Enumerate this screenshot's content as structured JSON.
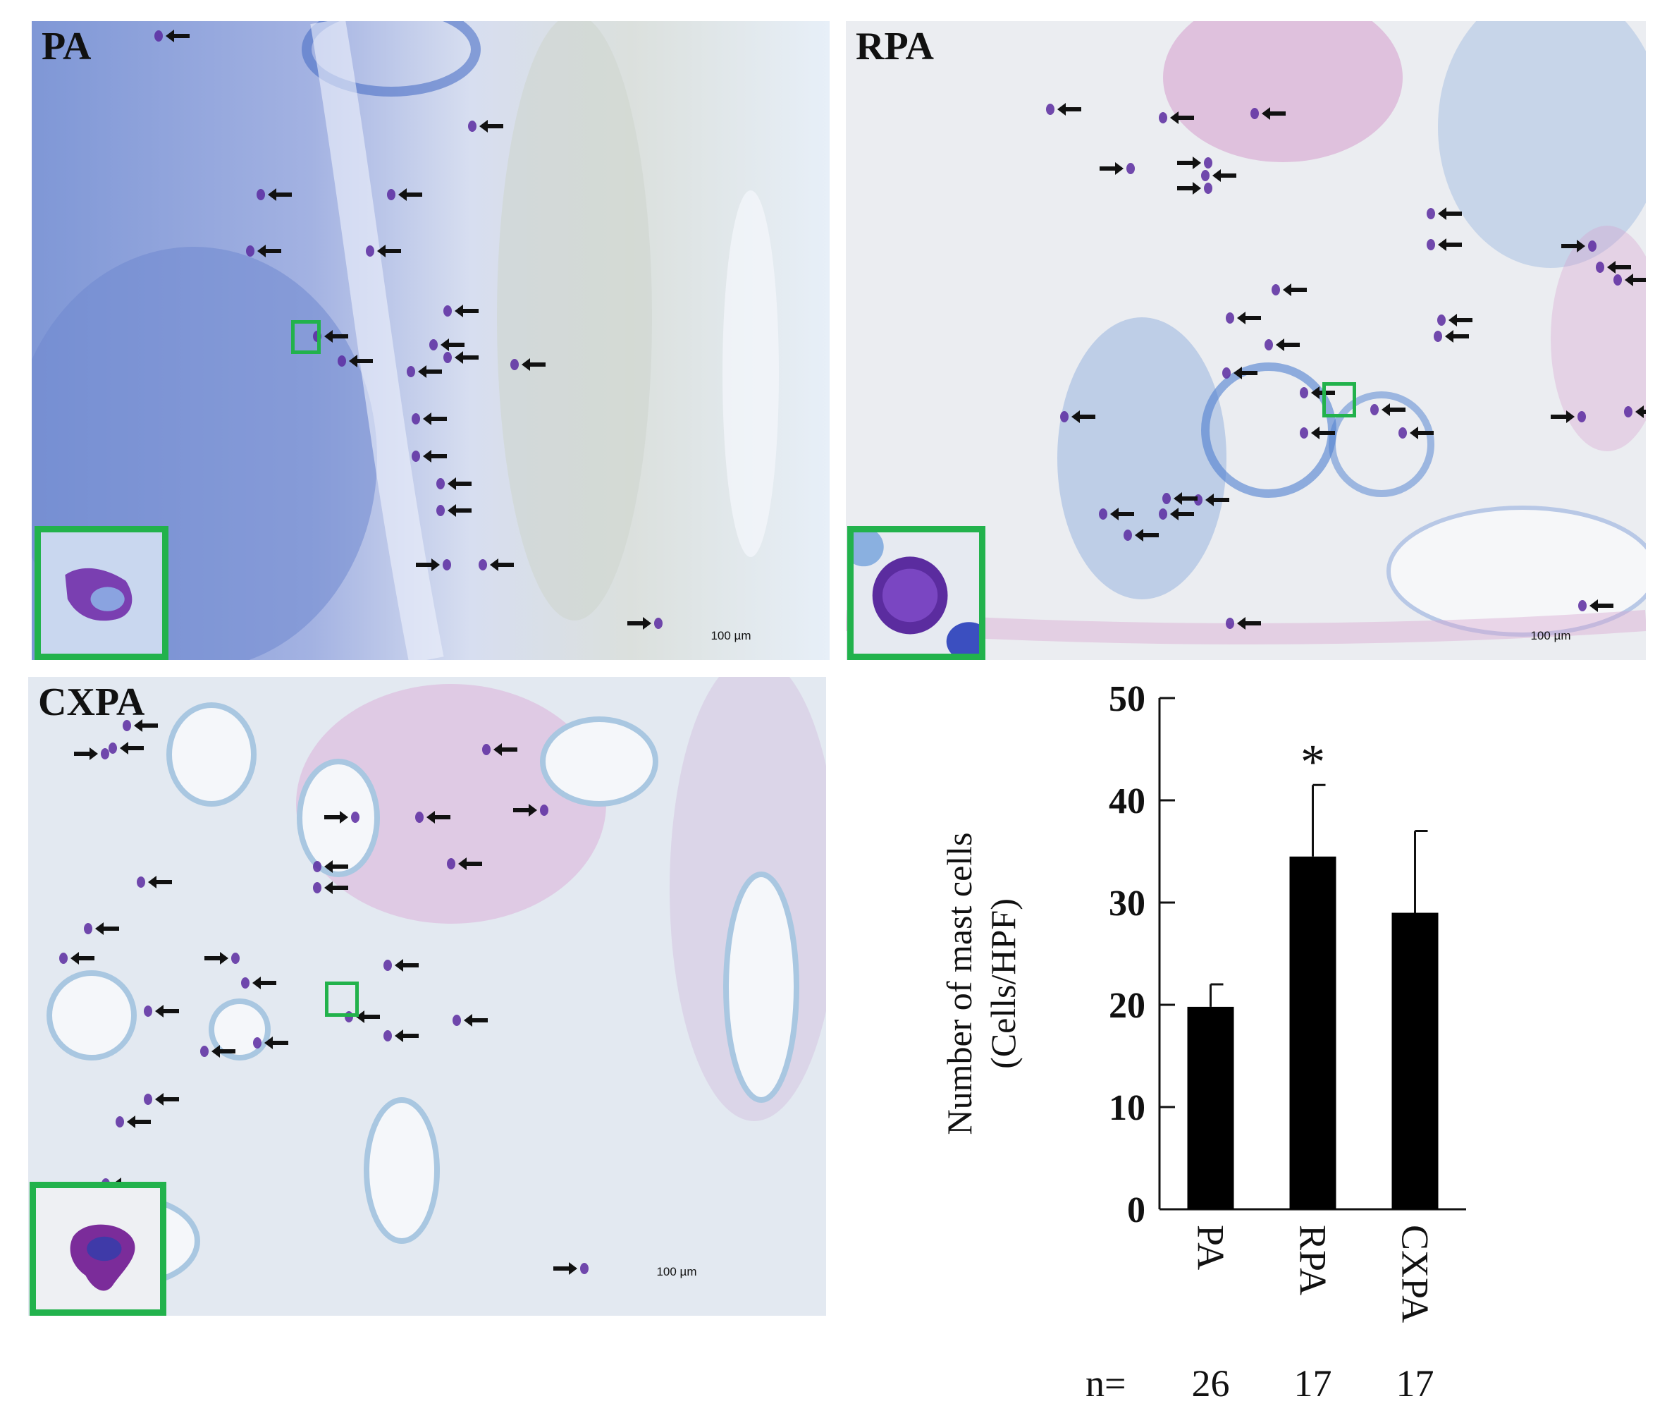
{
  "panels": [
    {
      "id": "pa",
      "label": "PA",
      "scale_text": "100 µm"
    },
    {
      "id": "rpa",
      "label": "RPA",
      "scale_text": "100 µm"
    },
    {
      "id": "cxpa",
      "label": "CXPA",
      "scale_text": "100 µm"
    }
  ],
  "colors": {
    "inset_border": "#22b24c",
    "arrow": "#111111",
    "bar": "#000000"
  },
  "chart_data": {
    "type": "bar",
    "categories": [
      "PA",
      "RPA",
      "CXPA"
    ],
    "values": [
      19.8,
      34.5,
      29
    ],
    "errors": [
      2.2,
      7,
      8
    ],
    "significance": [
      "",
      "*",
      ""
    ],
    "ylabel_line1": "Number of mast cells",
    "ylabel_line2": "(Cells/HPF)",
    "ylim": [
      0,
      50
    ],
    "yticks": [
      0,
      10,
      20,
      30,
      40,
      50
    ],
    "n_label": "n=",
    "n_values": [
      "26",
      "17",
      "17"
    ]
  }
}
